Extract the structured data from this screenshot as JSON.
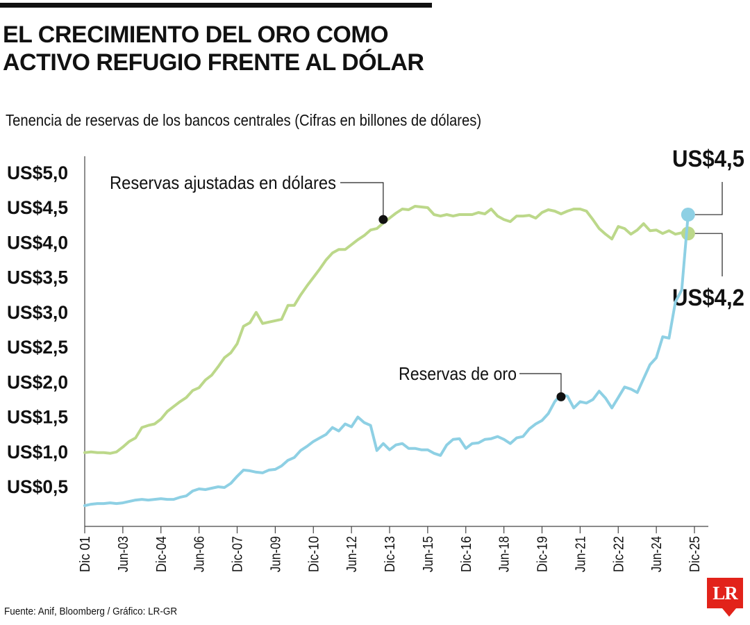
{
  "header": {
    "title_line1": "EL CRECIMIENTO DEL ORO COMO",
    "title_line2": "ACTIVO REFUGIO FRENTE AL DÓLAR",
    "subtitle": "Tenencia de reservas de los bancos centrales (Cifras en billones de dólares)"
  },
  "footer": {
    "source": "Fuente: Anif, Bloomberg / Gráfico: LR-GR",
    "logo_text": "LR"
  },
  "chart_data": {
    "type": "line",
    "ylim": [
      0.2,
      5.4
    ],
    "y_ticks": [
      {
        "value": 0.5,
        "label": "US$0,5"
      },
      {
        "value": 1.0,
        "label": "US$1,0"
      },
      {
        "value": 1.5,
        "label": "US$1,5"
      },
      {
        "value": 2.0,
        "label": "US$2,0"
      },
      {
        "value": 2.5,
        "label": "US$2,5"
      },
      {
        "value": 3.0,
        "label": "US$3,0"
      },
      {
        "value": 3.5,
        "label": "US$3,5"
      },
      {
        "value": 4.0,
        "label": "US$4,0"
      },
      {
        "value": 4.5,
        "label": "US$4,5"
      },
      {
        "value": 5.0,
        "label": "US$5,0"
      }
    ],
    "x_ticks": [
      "Dic 01",
      "Jun-03",
      "Dic-04",
      "Jun-06",
      "Dic-07",
      "Jun-09",
      "Dic-10",
      "Jun-12",
      "Dic-13",
      "Jun-15",
      "Dic-16",
      "Jun-18",
      "Dic-19",
      "Jun-21",
      "Dic-22",
      "Jun-24",
      "Dic-25"
    ],
    "x_tick_dates": [
      "2001-12",
      "2003-06",
      "2004-12",
      "2006-06",
      "2007-12",
      "2009-06",
      "2010-12",
      "2012-06",
      "2013-12",
      "2015-06",
      "2016-12",
      "2018-06",
      "2019-12",
      "2021-06",
      "2022-12",
      "2024-06",
      "2025-12"
    ],
    "series": [
      {
        "name": "Reservas ajustadas en dólares",
        "color": "#bcd88a",
        "points": [
          [
            "2001-12",
            0.99
          ],
          [
            "2002-03",
            1.0
          ],
          [
            "2002-06",
            0.99
          ],
          [
            "2002-09",
            0.99
          ],
          [
            "2002-12",
            0.98
          ],
          [
            "2003-03",
            1.0
          ],
          [
            "2003-06",
            1.07
          ],
          [
            "2003-09",
            1.15
          ],
          [
            "2003-12",
            1.2
          ],
          [
            "2004-03",
            1.35
          ],
          [
            "2004-06",
            1.38
          ],
          [
            "2004-09",
            1.4
          ],
          [
            "2004-12",
            1.47
          ],
          [
            "2005-03",
            1.58
          ],
          [
            "2005-06",
            1.65
          ],
          [
            "2005-09",
            1.72
          ],
          [
            "2005-12",
            1.78
          ],
          [
            "2006-03",
            1.88
          ],
          [
            "2006-06",
            1.92
          ],
          [
            "2006-09",
            2.03
          ],
          [
            "2006-12",
            2.1
          ],
          [
            "2007-03",
            2.22
          ],
          [
            "2007-06",
            2.35
          ],
          [
            "2007-09",
            2.42
          ],
          [
            "2007-12",
            2.55
          ],
          [
            "2008-03",
            2.8
          ],
          [
            "2008-06",
            2.85
          ],
          [
            "2008-09",
            3.0
          ],
          [
            "2008-12",
            2.84
          ],
          [
            "2009-03",
            2.86
          ],
          [
            "2009-06",
            2.88
          ],
          [
            "2009-09",
            2.9
          ],
          [
            "2009-12",
            3.1
          ],
          [
            "2010-03",
            3.1
          ],
          [
            "2010-06",
            3.25
          ],
          [
            "2010-09",
            3.38
          ],
          [
            "2010-12",
            3.5
          ],
          [
            "2011-03",
            3.62
          ],
          [
            "2011-06",
            3.75
          ],
          [
            "2011-09",
            3.85
          ],
          [
            "2011-12",
            3.9
          ],
          [
            "2012-03",
            3.9
          ],
          [
            "2012-06",
            3.97
          ],
          [
            "2012-09",
            4.04
          ],
          [
            "2012-12",
            4.1
          ],
          [
            "2013-03",
            4.18
          ],
          [
            "2013-06",
            4.2
          ],
          [
            "2013-09",
            4.28
          ],
          [
            "2013-12",
            4.35
          ],
          [
            "2014-03",
            4.42
          ],
          [
            "2014-06",
            4.48
          ],
          [
            "2014-09",
            4.47
          ],
          [
            "2014-12",
            4.52
          ],
          [
            "2015-03",
            4.51
          ],
          [
            "2015-06",
            4.5
          ],
          [
            "2015-09",
            4.4
          ],
          [
            "2015-12",
            4.38
          ],
          [
            "2016-03",
            4.4
          ],
          [
            "2016-06",
            4.38
          ],
          [
            "2016-09",
            4.4
          ],
          [
            "2016-12",
            4.4
          ],
          [
            "2017-03",
            4.4
          ],
          [
            "2017-06",
            4.43
          ],
          [
            "2017-09",
            4.41
          ],
          [
            "2017-12",
            4.48
          ],
          [
            "2018-03",
            4.38
          ],
          [
            "2018-06",
            4.33
          ],
          [
            "2018-09",
            4.3
          ],
          [
            "2018-12",
            4.38
          ],
          [
            "2019-03",
            4.38
          ],
          [
            "2019-06",
            4.39
          ],
          [
            "2019-09",
            4.35
          ],
          [
            "2019-12",
            4.43
          ],
          [
            "2020-03",
            4.47
          ],
          [
            "2020-06",
            4.45
          ],
          [
            "2020-09",
            4.41
          ],
          [
            "2020-12",
            4.45
          ],
          [
            "2021-03",
            4.48
          ],
          [
            "2021-06",
            4.48
          ],
          [
            "2021-09",
            4.45
          ],
          [
            "2021-12",
            4.33
          ],
          [
            "2022-03",
            4.2
          ],
          [
            "2022-06",
            4.12
          ],
          [
            "2022-09",
            4.05
          ],
          [
            "2022-12",
            4.23
          ],
          [
            "2023-03",
            4.2
          ],
          [
            "2023-06",
            4.12
          ],
          [
            "2023-09",
            4.18
          ],
          [
            "2023-12",
            4.27
          ],
          [
            "2024-03",
            4.17
          ],
          [
            "2024-06",
            4.18
          ],
          [
            "2024-09",
            4.13
          ],
          [
            "2024-12",
            4.17
          ],
          [
            "2025-03",
            4.12
          ],
          [
            "2025-06",
            4.14
          ],
          [
            "2025-09",
            4.13
          ]
        ],
        "annotation": {
          "label": "Reservas ajustadas en dólares",
          "at": "2013-09",
          "value": 4.33
        },
        "end_label": "US$4,2"
      },
      {
        "name": "Reservas de oro",
        "color": "#8ed0e4",
        "points": [
          [
            "2001-12",
            0.23
          ],
          [
            "2002-03",
            0.25
          ],
          [
            "2002-06",
            0.26
          ],
          [
            "2002-09",
            0.26
          ],
          [
            "2002-12",
            0.27
          ],
          [
            "2003-03",
            0.26
          ],
          [
            "2003-06",
            0.27
          ],
          [
            "2003-09",
            0.29
          ],
          [
            "2003-12",
            0.31
          ],
          [
            "2004-03",
            0.32
          ],
          [
            "2004-06",
            0.31
          ],
          [
            "2004-09",
            0.32
          ],
          [
            "2004-12",
            0.33
          ],
          [
            "2005-03",
            0.32
          ],
          [
            "2005-06",
            0.32
          ],
          [
            "2005-09",
            0.35
          ],
          [
            "2005-12",
            0.37
          ],
          [
            "2006-03",
            0.44
          ],
          [
            "2006-06",
            0.47
          ],
          [
            "2006-09",
            0.46
          ],
          [
            "2006-12",
            0.48
          ],
          [
            "2007-03",
            0.5
          ],
          [
            "2007-06",
            0.49
          ],
          [
            "2007-09",
            0.55
          ],
          [
            "2007-12",
            0.65
          ],
          [
            "2008-03",
            0.74
          ],
          [
            "2008-06",
            0.73
          ],
          [
            "2008-09",
            0.71
          ],
          [
            "2008-12",
            0.7
          ],
          [
            "2009-03",
            0.74
          ],
          [
            "2009-06",
            0.75
          ],
          [
            "2009-09",
            0.8
          ],
          [
            "2009-12",
            0.88
          ],
          [
            "2010-03",
            0.92
          ],
          [
            "2010-06",
            1.02
          ],
          [
            "2010-09",
            1.08
          ],
          [
            "2010-12",
            1.15
          ],
          [
            "2011-03",
            1.2
          ],
          [
            "2011-06",
            1.25
          ],
          [
            "2011-09",
            1.35
          ],
          [
            "2011-12",
            1.3
          ],
          [
            "2012-03",
            1.4
          ],
          [
            "2012-06",
            1.36
          ],
          [
            "2012-09",
            1.5
          ],
          [
            "2012-12",
            1.42
          ],
          [
            "2013-03",
            1.38
          ],
          [
            "2013-06",
            1.02
          ],
          [
            "2013-09",
            1.12
          ],
          [
            "2013-12",
            1.03
          ],
          [
            "2014-03",
            1.1
          ],
          [
            "2014-06",
            1.12
          ],
          [
            "2014-09",
            1.05
          ],
          [
            "2014-12",
            1.05
          ],
          [
            "2015-03",
            1.03
          ],
          [
            "2015-06",
            1.03
          ],
          [
            "2015-09",
            0.98
          ],
          [
            "2015-12",
            0.95
          ],
          [
            "2016-03",
            1.1
          ],
          [
            "2016-06",
            1.18
          ],
          [
            "2016-09",
            1.19
          ],
          [
            "2016-12",
            1.05
          ],
          [
            "2017-03",
            1.12
          ],
          [
            "2017-06",
            1.13
          ],
          [
            "2017-09",
            1.18
          ],
          [
            "2017-12",
            1.19
          ],
          [
            "2018-03",
            1.22
          ],
          [
            "2018-06",
            1.18
          ],
          [
            "2018-09",
            1.12
          ],
          [
            "2018-12",
            1.2
          ],
          [
            "2019-03",
            1.22
          ],
          [
            "2019-06",
            1.33
          ],
          [
            "2019-09",
            1.4
          ],
          [
            "2019-12",
            1.45
          ],
          [
            "2020-03",
            1.55
          ],
          [
            "2020-06",
            1.72
          ],
          [
            "2020-09",
            1.82
          ],
          [
            "2020-12",
            1.8
          ],
          [
            "2021-03",
            1.63
          ],
          [
            "2021-06",
            1.72
          ],
          [
            "2021-09",
            1.7
          ],
          [
            "2021-12",
            1.75
          ],
          [
            "2022-03",
            1.87
          ],
          [
            "2022-06",
            1.77
          ],
          [
            "2022-09",
            1.63
          ],
          [
            "2022-12",
            1.78
          ],
          [
            "2023-03",
            1.93
          ],
          [
            "2023-06",
            1.9
          ],
          [
            "2023-09",
            1.85
          ],
          [
            "2023-12",
            2.05
          ],
          [
            "2024-03",
            2.25
          ],
          [
            "2024-06",
            2.35
          ],
          [
            "2024-09",
            2.65
          ],
          [
            "2024-12",
            2.63
          ],
          [
            "2025-03",
            3.15
          ],
          [
            "2025-06",
            3.32
          ],
          [
            "2025-09",
            4.4
          ]
        ],
        "annotation": {
          "label": "Reservas de oro",
          "at": "2020-09",
          "value": 1.79
        },
        "end_label": "US$4,5"
      }
    ]
  }
}
